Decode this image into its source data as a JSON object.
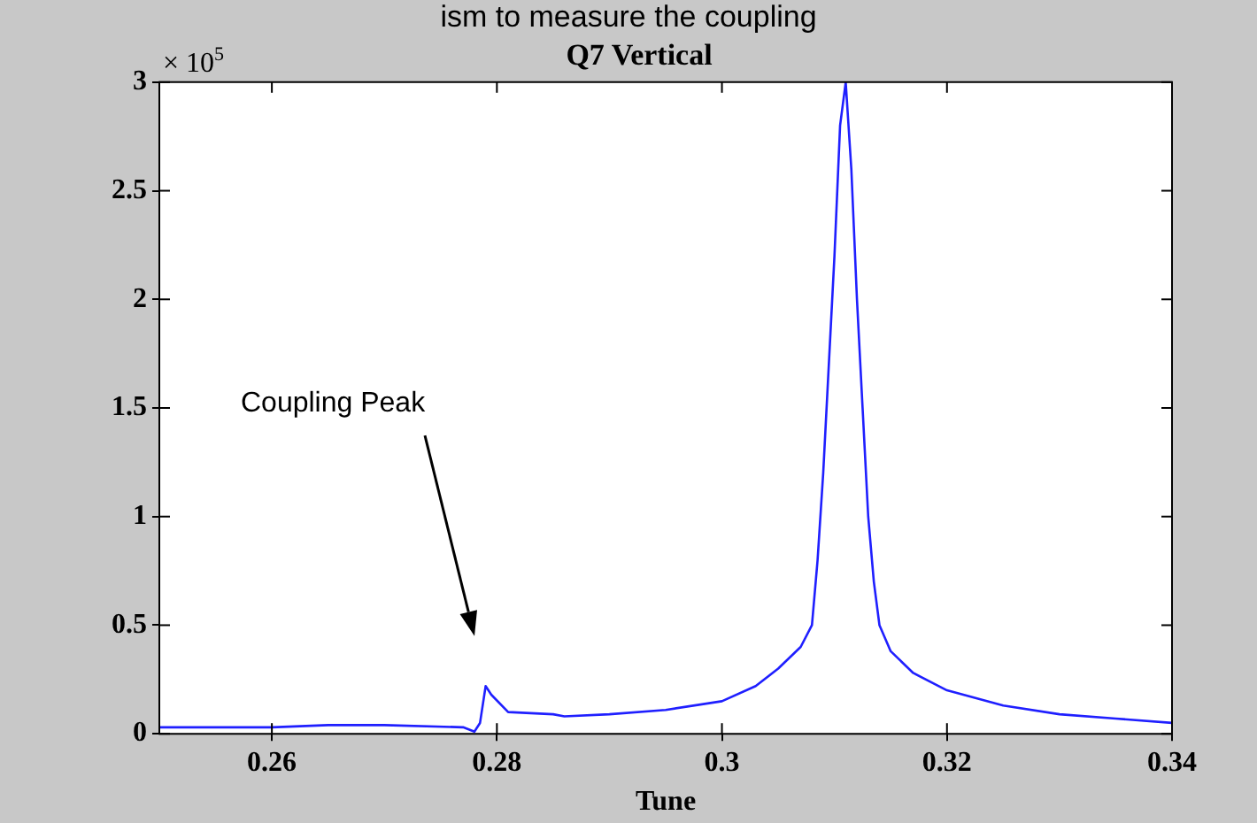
{
  "chart_data": {
    "type": "line",
    "title": "Q7 Vertical",
    "xlabel": "Tune",
    "annotations": [
      "ism to measure the coupling",
      "× 10$^{5}$",
      "Coupling Peak"
    ],
    "x": [
      0.25,
      0.26,
      0.265,
      0.27,
      0.277,
      0.278,
      0.2785,
      0.279,
      0.2795,
      0.281,
      0.285,
      0.286,
      0.29,
      0.295,
      0.3,
      0.303,
      0.305,
      0.307,
      0.308,
      0.3085,
      0.309,
      0.3095,
      0.31,
      0.3105,
      0.311,
      0.3115,
      0.312,
      0.3125,
      0.313,
      0.3135,
      0.314,
      0.315,
      0.317,
      0.32,
      0.325,
      0.33,
      0.335,
      0.34
    ],
    "series": [
      {
        "color": "#1f1fff",
        "values": [
          0.03,
          0.03,
          0.04,
          0.04,
          0.03,
          0.01,
          0.05,
          0.22,
          0.18,
          0.1,
          0.09,
          0.08,
          0.09,
          0.11,
          0.15,
          0.22,
          0.3,
          0.4,
          0.5,
          0.8,
          1.2,
          1.7,
          2.2,
          2.8,
          3,
          2.6,
          2,
          1.5,
          1,
          0.7,
          0.5,
          0.38,
          0.28,
          0.2,
          0.13,
          0.09,
          0.07,
          0.05
        ]
      }
    ],
    "xlim": [
      0.25,
      0.34
    ],
    "xticks": [
      0.26,
      0.28,
      0.3,
      0.32,
      0.34
    ],
    "ylim": [
      0,
      3
    ],
    "yticks": [
      0,
      0.5,
      1,
      1.5,
      2,
      2.5,
      3
    ],
    "legend": false,
    "marker": "none",
    "line_style": "solid"
  }
}
